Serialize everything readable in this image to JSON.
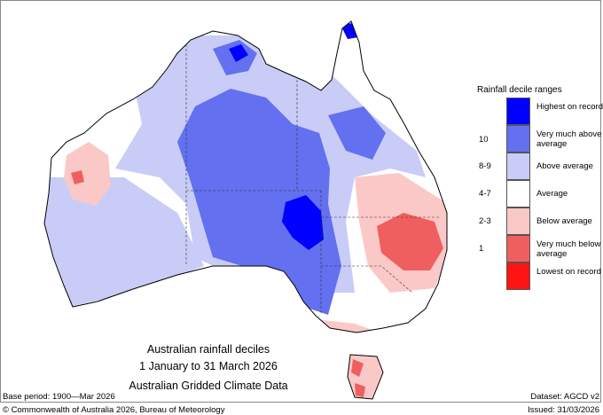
{
  "title": {
    "line1": "Australian rainfall deciles",
    "line2": "1 January to 31 March 2026",
    "line3": "Australian Gridded Climate Data"
  },
  "legend": {
    "title": "Rainfall decile ranges",
    "items": [
      {
        "label": "Highest on record",
        "decile": "",
        "color": "#0000ff"
      },
      {
        "label": "Very much above average",
        "decile": "10",
        "color": "#6370ef"
      },
      {
        "label": "Above average",
        "decile": "8-9",
        "color": "#c8ccf6"
      },
      {
        "label": "Average",
        "decile": "4-7",
        "color": "#ffffff"
      },
      {
        "label": "Below average",
        "decile": "2-3",
        "color": "#fbc8c8"
      },
      {
        "label": "Very much below average",
        "decile": "1",
        "color": "#ef5f5f"
      },
      {
        "label": "Lowest on record",
        "decile": "",
        "color": "#ff1414"
      }
    ]
  },
  "footer": {
    "base_period": "Base period: 1900—Mar 2026",
    "dataset": "Dataset: AGCD v2",
    "copyright": "© Commonwealth of Australia 2026, Bureau of Meteorology",
    "issued": "Issued: 31/03/2026"
  }
}
